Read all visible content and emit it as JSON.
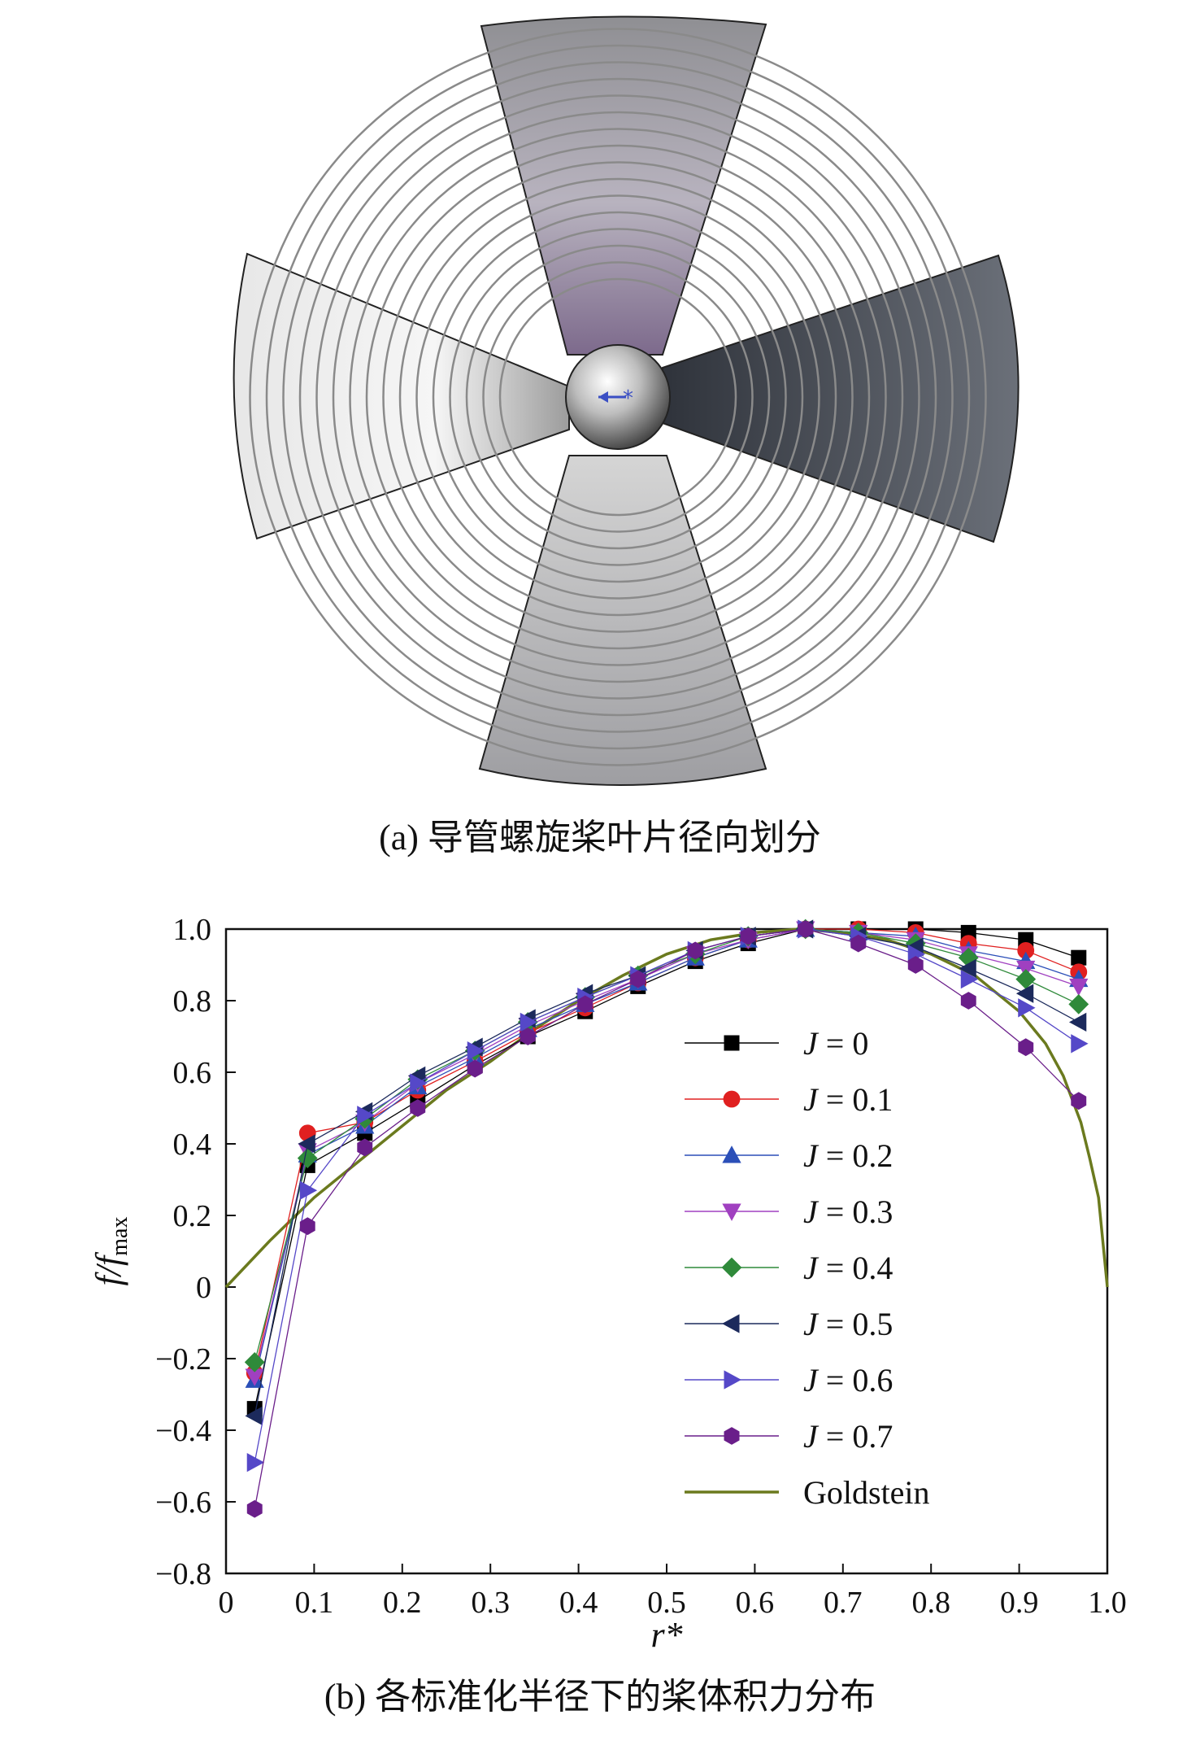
{
  "panel_a": {
    "caption": "(a) 导管螺旋桨叶片径向划分"
  },
  "panel_b": {
    "caption": "(b) 各标准化半径下的桨体积力分布"
  },
  "colors": {
    "blade_light": "#d9d9d9",
    "blade_dark": "#4a4f58",
    "ring": "#8a8a8a",
    "hub_marker": "#3b4fc4",
    "goldstein": "#6b7a1e"
  },
  "chart_data": {
    "type": "line",
    "xlabel": "r*",
    "ylabel": "f/f_max",
    "ylabel_main": "f/f",
    "ylabel_sub": "max",
    "xlim": [
      0,
      1.0
    ],
    "ylim": [
      -0.8,
      1.0
    ],
    "xticks": [
      "0",
      "0.1",
      "0.2",
      "0.3",
      "0.4",
      "0.5",
      "0.6",
      "0.7",
      "0.8",
      "0.9",
      "1.0"
    ],
    "yticks": [
      "−0.8",
      "−0.6",
      "−0.4",
      "−0.2",
      "0",
      "0.2",
      "0.4",
      "0.6",
      "0.8",
      "1.0"
    ],
    "legend_position": "right-center",
    "x": [
      0.0325,
      0.0925,
      0.1575,
      0.2175,
      0.2825,
      0.3425,
      0.4075,
      0.4675,
      0.5325,
      0.5925,
      0.6575,
      0.7175,
      0.7825,
      0.8425,
      0.9075,
      0.9675
    ],
    "series": [
      {
        "name": "J = 0",
        "marker": "square",
        "color": "#000000",
        "values": [
          -0.34,
          0.34,
          0.43,
          0.52,
          0.62,
          0.7,
          0.77,
          0.84,
          0.91,
          0.96,
          1.0,
          1.0,
          1.0,
          0.99,
          0.97,
          0.92
        ]
      },
      {
        "name": "J = 0.1",
        "marker": "circle",
        "color": "#e02020",
        "values": [
          -0.24,
          0.43,
          0.46,
          0.55,
          0.63,
          0.71,
          0.78,
          0.85,
          0.92,
          0.97,
          1.0,
          1.0,
          0.99,
          0.96,
          0.94,
          0.88
        ]
      },
      {
        "name": "J = 0.2",
        "marker": "triangle-up",
        "color": "#2b4fb8",
        "values": [
          -0.26,
          0.37,
          0.45,
          0.56,
          0.64,
          0.72,
          0.79,
          0.85,
          0.92,
          0.97,
          1.0,
          0.99,
          0.98,
          0.94,
          0.91,
          0.86
        ]
      },
      {
        "name": "J = 0.3",
        "marker": "triangle-down",
        "color": "#a040c0",
        "values": [
          -0.25,
          0.38,
          0.46,
          0.57,
          0.65,
          0.73,
          0.8,
          0.86,
          0.93,
          0.97,
          1.0,
          0.99,
          0.97,
          0.93,
          0.89,
          0.84
        ]
      },
      {
        "name": "J = 0.4",
        "marker": "diamond",
        "color": "#2f8a3a",
        "values": [
          -0.21,
          0.36,
          0.47,
          0.58,
          0.66,
          0.74,
          0.81,
          0.87,
          0.93,
          0.98,
          1.0,
          0.99,
          0.96,
          0.92,
          0.86,
          0.79
        ]
      },
      {
        "name": "J = 0.5",
        "marker": "triangle-left",
        "color": "#1c2a5c",
        "values": [
          -0.36,
          0.4,
          0.49,
          0.59,
          0.67,
          0.75,
          0.82,
          0.87,
          0.94,
          0.98,
          1.0,
          0.98,
          0.95,
          0.89,
          0.82,
          0.74
        ]
      },
      {
        "name": "J = 0.6",
        "marker": "triangle-right",
        "color": "#5548c8",
        "values": [
          -0.49,
          0.27,
          0.48,
          0.57,
          0.66,
          0.74,
          0.81,
          0.87,
          0.94,
          0.98,
          1.0,
          0.98,
          0.93,
          0.86,
          0.78,
          0.68
        ]
      },
      {
        "name": "J = 0.7",
        "marker": "hexagon",
        "color": "#6a1e8a",
        "values": [
          -0.62,
          0.17,
          0.39,
          0.5,
          0.61,
          0.7,
          0.79,
          0.86,
          0.94,
          0.98,
          1.0,
          0.96,
          0.9,
          0.8,
          0.67,
          0.52
        ]
      }
    ],
    "goldstein": {
      "name": "Goldstein",
      "x": [
        0.0,
        0.05,
        0.1,
        0.15,
        0.2,
        0.25,
        0.3,
        0.35,
        0.4,
        0.45,
        0.5,
        0.55,
        0.6,
        0.65,
        0.7,
        0.75,
        0.8,
        0.85,
        0.9,
        0.93,
        0.95,
        0.97,
        0.98,
        0.99,
        1.0
      ],
      "values": [
        0.0,
        0.13,
        0.25,
        0.35,
        0.45,
        0.55,
        0.63,
        0.72,
        0.8,
        0.87,
        0.93,
        0.97,
        0.99,
        1.0,
        0.99,
        0.97,
        0.93,
        0.87,
        0.77,
        0.68,
        0.59,
        0.46,
        0.36,
        0.25,
        0.0
      ]
    }
  }
}
